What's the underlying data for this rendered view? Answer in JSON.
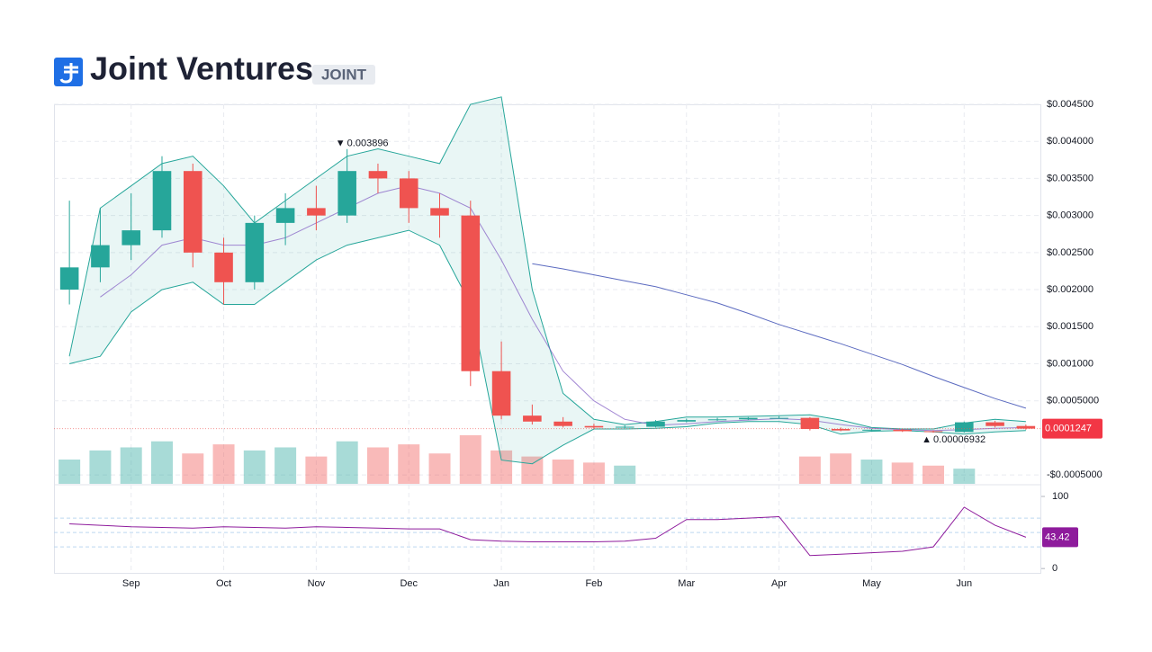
{
  "header": {
    "title": "Joint Ventures",
    "ticker": "JOINT"
  },
  "chart_data": {
    "type": "candlestick",
    "categories": [
      null,
      null,
      "Sep",
      null,
      null,
      "Oct",
      null,
      null,
      "Nov",
      null,
      null,
      "Dec",
      null,
      null,
      "Jan",
      null,
      null,
      "Feb",
      null,
      null,
      "Mar",
      null,
      null,
      "Apr",
      null,
      null,
      "May",
      null,
      null,
      "Jun",
      null,
      null
    ],
    "open": [
      0.002,
      0.0023,
      0.0026,
      0.0028,
      0.0036,
      0.0025,
      0.0021,
      0.0029,
      0.0031,
      0.003,
      0.0036,
      0.0035,
      0.0031,
      0.003,
      0.0009,
      0.0003,
      0.00022,
      0.00016,
      0.00014,
      0.00015,
      0.00022,
      0.00024,
      0.00025,
      0.00027,
      0.00027,
      0.00012,
      0.0001,
      0.00011,
      9e-05,
      8e-05,
      0.00021,
      0.00016
    ],
    "high": [
      0.0032,
      0.0031,
      0.0033,
      0.0038,
      0.0037,
      0.0027,
      0.003,
      0.0033,
      0.0034,
      0.003896,
      0.0037,
      0.0036,
      0.0033,
      0.0032,
      0.0013,
      0.00045,
      0.00028,
      0.00019,
      0.00017,
      0.00024,
      0.00026,
      0.00027,
      0.00028,
      0.00029,
      0.00028,
      0.00014,
      0.00012,
      0.00012,
      0.0001,
      0.00022,
      0.00023,
      0.00018
    ],
    "low": [
      0.0018,
      0.0021,
      0.0024,
      0.0027,
      0.0023,
      0.0018,
      0.002,
      0.0026,
      0.0028,
      0.0029,
      0.0033,
      0.0029,
      0.0027,
      0.0007,
      0.00025,
      0.00018,
      0.00014,
      0.00012,
      0.00013,
      0.00014,
      0.00021,
      0.00023,
      0.00024,
      0.00026,
      0.0001,
      9e-05,
      9e-05,
      8e-05,
      6.932e-05,
      7e-05,
      0.00014,
      0.00011
    ],
    "close": [
      0.0023,
      0.0026,
      0.0028,
      0.0036,
      0.0025,
      0.0021,
      0.0029,
      0.0031,
      0.003,
      0.0036,
      0.0035,
      0.0031,
      0.003,
      0.0009,
      0.0003,
      0.00022,
      0.00016,
      0.00014,
      0.00015,
      0.00022,
      0.00024,
      0.00025,
      0.00027,
      0.00027,
      0.00012,
      0.0001,
      0.00011,
      9e-05,
      8e-05,
      0.00021,
      0.00016,
      0.0001247
    ],
    "up_color": "#26a69a",
    "down_color": "#ef5350",
    "ylim": [
      -0.00062,
      0.0045
    ],
    "yticks": [
      {
        "value": 0.0045,
        "label": "$0.004500"
      },
      {
        "value": 0.004,
        "label": "$0.004000"
      },
      {
        "value": 0.0035,
        "label": "$0.003500"
      },
      {
        "value": 0.003,
        "label": "$0.003000"
      },
      {
        "value": 0.0025,
        "label": "$0.002500"
      },
      {
        "value": 0.002,
        "label": "$0.002000"
      },
      {
        "value": 0.0015,
        "label": "$0.001500"
      },
      {
        "value": 0.001,
        "label": "$0.001000"
      },
      {
        "value": 0.0005,
        "label": "$0.0005000"
      },
      {
        "value": -0.0005,
        "label": "-$0.0005000"
      }
    ],
    "grid": true,
    "volume": {
      "values": [
        40,
        55,
        60,
        70,
        50,
        65,
        55,
        60,
        45,
        70,
        60,
        65,
        50,
        80,
        55,
        45,
        40,
        35,
        30,
        null,
        null,
        null,
        null,
        null,
        45,
        50,
        40,
        35,
        30,
        25,
        null,
        null
      ],
      "ylim": [
        0,
        100
      ]
    },
    "bollinger": {
      "upper": [
        0.0011,
        0.0031,
        0.0034,
        0.0037,
        0.0038,
        0.0034,
        0.0029,
        0.0032,
        0.0035,
        0.0038,
        0.0039,
        0.0038,
        0.0037,
        0.0045,
        0.0046,
        0.002,
        0.0006,
        0.00025,
        0.00018,
        0.00022,
        0.00028,
        0.00028,
        0.00029,
        0.0003,
        0.00031,
        0.00024,
        0.00014,
        0.00012,
        0.00012,
        0.0002,
        0.00025,
        0.00022
      ],
      "middle": [
        null,
        0.0019,
        0.0022,
        0.0026,
        0.0027,
        0.0026,
        0.0026,
        0.0027,
        0.0029,
        0.0031,
        0.0033,
        0.0034,
        0.0033,
        0.0031,
        0.0024,
        0.0016,
        0.0009,
        0.0005,
        0.00025,
        0.00017,
        0.00019,
        0.00022,
        0.00024,
        0.00026,
        0.00024,
        0.00018,
        0.00013,
        0.00011,
        0.0001,
        0.00011,
        0.00013,
        0.00014
      ],
      "lower": [
        0.001,
        0.0011,
        0.0017,
        0.002,
        0.0021,
        0.0018,
        0.0018,
        0.0021,
        0.0024,
        0.0026,
        0.0027,
        0.0028,
        0.0026,
        0.0018,
        -0.0003,
        -0.00035,
        -0.0001,
        0.00012,
        0.00012,
        0.00013,
        0.00015,
        0.0002,
        0.00022,
        0.00022,
        0.00018,
        5e-05,
        9e-05,
        0.0001,
        8e-05,
        5e-05,
        8e-05,
        0.0001
      ],
      "color": "#26a69a",
      "middle_color": "#7e57c2"
    },
    "ma200": {
      "values": [
        null,
        null,
        null,
        null,
        null,
        null,
        null,
        null,
        null,
        null,
        null,
        null,
        null,
        null,
        null,
        0.00235,
        0.00228,
        0.0022,
        0.00212,
        0.00204,
        0.00193,
        0.00182,
        0.00168,
        0.00153,
        0.0014,
        0.00127,
        0.00113,
        0.00099,
        0.00083,
        0.00068,
        0.00053,
        0.0004
      ],
      "color": "#5c6bc0"
    },
    "rsi": {
      "values": [
        62,
        60,
        58,
        57,
        56,
        58,
        57,
        56,
        58,
        57,
        56,
        55,
        55,
        40,
        38,
        37,
        37,
        37,
        38,
        42,
        68,
        68,
        70,
        72,
        18,
        20,
        22,
        24,
        30,
        85,
        60,
        43.42
      ],
      "ylim": [
        -6,
        115
      ],
      "yticks": [
        0,
        100
      ],
      "levels": [
        30,
        50,
        70
      ],
      "color": "#8e1b9c"
    }
  }
}
